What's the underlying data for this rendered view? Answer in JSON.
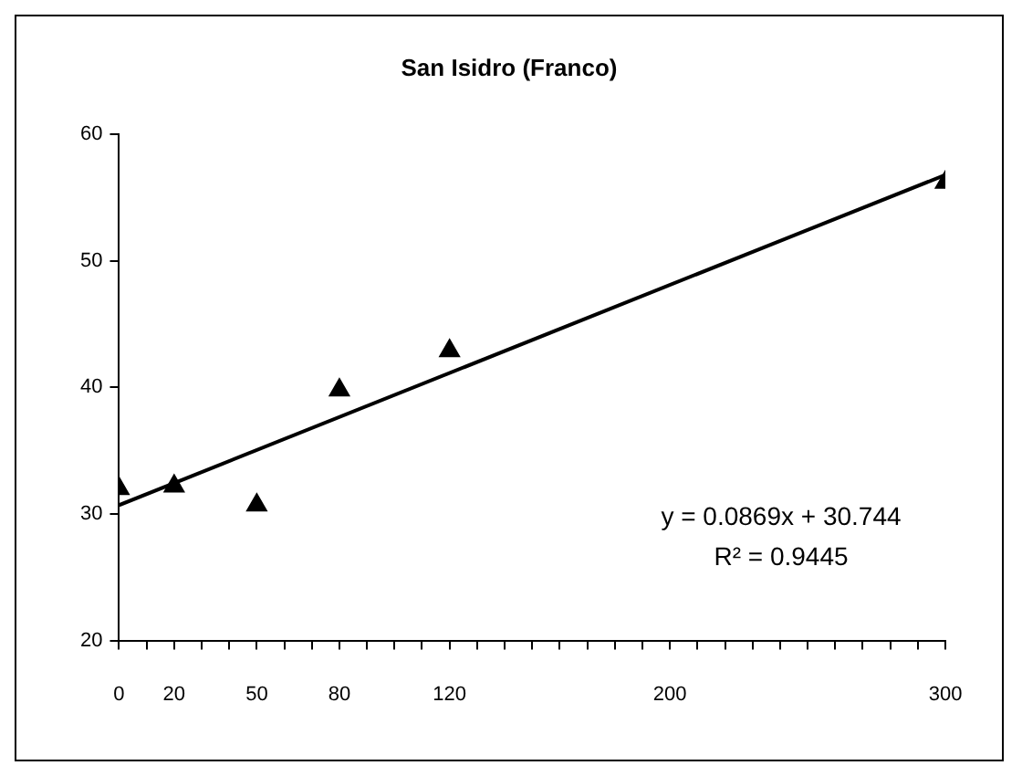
{
  "chart_data": {
    "type": "scatter",
    "title": "San Isidro (Franco)",
    "xlim": [
      0,
      300
    ],
    "xticks": [
      0,
      {
        "value": 10,
        "label": null
      },
      20,
      {
        "value": 30,
        "label": null
      },
      {
        "value": 40,
        "label": null
      },
      50,
      {
        "value": 60,
        "label": null
      },
      {
        "value": 70,
        "label": null
      },
      80,
      {
        "value": 90,
        "label": null
      },
      {
        "value": 100,
        "label": null
      },
      {
        "value": 110,
        "label": null
      },
      120,
      {
        "value": 130,
        "label": null
      },
      {
        "value": 140,
        "label": null
      },
      {
        "value": 150,
        "label": null
      },
      {
        "value": 160,
        "label": null
      },
      {
        "value": 170,
        "label": null
      },
      {
        "value": 180,
        "label": null
      },
      {
        "value": 190,
        "label": null
      },
      200,
      {
        "value": 210,
        "label": null
      },
      {
        "value": 220,
        "label": null
      },
      {
        "value": 230,
        "label": null
      },
      {
        "value": 240,
        "label": null
      },
      {
        "value": 250,
        "label": null
      },
      {
        "value": 260,
        "label": null
      },
      {
        "value": 270,
        "label": null
      },
      {
        "value": 280,
        "label": null
      },
      {
        "value": 290,
        "label": null
      },
      300
    ],
    "ylim": [
      20,
      60
    ],
    "yticks": [
      20,
      30,
      40,
      50,
      60
    ],
    "series": [
      {
        "type": "scatter",
        "color": "#000000",
        "x": [
          0,
          20,
          50,
          80,
          120,
          300
        ],
        "values": [
          32.0,
          32.2,
          30.7,
          39.8,
          42.9,
          56.2
        ]
      },
      {
        "type": "line",
        "color": "#000000",
        "marker": "none",
        "x": [
          0,
          300
        ],
        "values": [
          30.7,
          56.8
        ]
      }
    ],
    "marker": "triangle",
    "grid": false,
    "legend": false,
    "annotations": [
      "y = 0.0869x + 30.744",
      "R² = 0.9445"
    ]
  }
}
